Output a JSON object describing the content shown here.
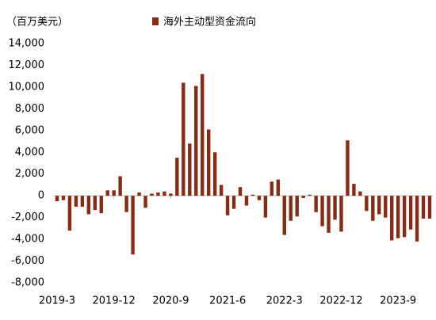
{
  "chart_data": {
    "type": "bar",
    "y_label": "（百万美元）",
    "series": [
      {
        "name": "海外主动型资金流向",
        "color": "#8b2a12",
        "values": [
          -500,
          -400,
          -3200,
          -1000,
          -1000,
          -1700,
          -1300,
          -1600,
          500,
          500,
          1800,
          -1500,
          -5400,
          300,
          -1100,
          200,
          300,
          400,
          200,
          3500,
          10400,
          4800,
          10100,
          11200,
          6100,
          4000,
          1000,
          -1800,
          -1200,
          800,
          -900,
          100,
          -400,
          -2000,
          1300,
          1500,
          -3600,
          -2300,
          -1900,
          -200,
          100,
          -1500,
          -2800,
          -3400,
          -2200,
          -3300,
          5100,
          1100,
          400,
          -1400,
          -2300,
          -1700,
          -2000,
          -4100,
          -3900,
          -3800,
          -3100,
          -4200,
          -2100,
          -2100
        ]
      }
    ],
    "categories": [
      "2019-3",
      null,
      null,
      null,
      null,
      null,
      null,
      null,
      null,
      "2019-12",
      null,
      null,
      null,
      null,
      null,
      null,
      null,
      null,
      "2020-9",
      null,
      null,
      null,
      null,
      null,
      null,
      null,
      null,
      "2021-6",
      null,
      null,
      null,
      null,
      null,
      null,
      null,
      null,
      "2022-3",
      null,
      null,
      null,
      null,
      null,
      null,
      null,
      null,
      "2022-12",
      null,
      null,
      null,
      null,
      null,
      null,
      null,
      null,
      "2023-9",
      null,
      null,
      null,
      null,
      null
    ],
    "ylim": [
      -8000,
      14000
    ],
    "yticks": [
      {
        "value": -8000,
        "label": "-8,000"
      },
      {
        "value": -6000,
        "label": "-6,000"
      },
      {
        "value": -4000,
        "label": "-4,000"
      },
      {
        "value": -2000,
        "label": "-2,000"
      },
      0,
      {
        "value": 2000,
        "label": "2,000"
      },
      {
        "value": 4000,
        "label": "4,000"
      },
      {
        "value": 6000,
        "label": "6,000"
      },
      {
        "value": 8000,
        "label": "8,000"
      },
      {
        "value": 10000,
        "label": "10,000"
      },
      {
        "value": 12000,
        "label": "12,000"
      },
      {
        "value": 14000,
        "label": "14,000"
      }
    ],
    "grid": false
  }
}
